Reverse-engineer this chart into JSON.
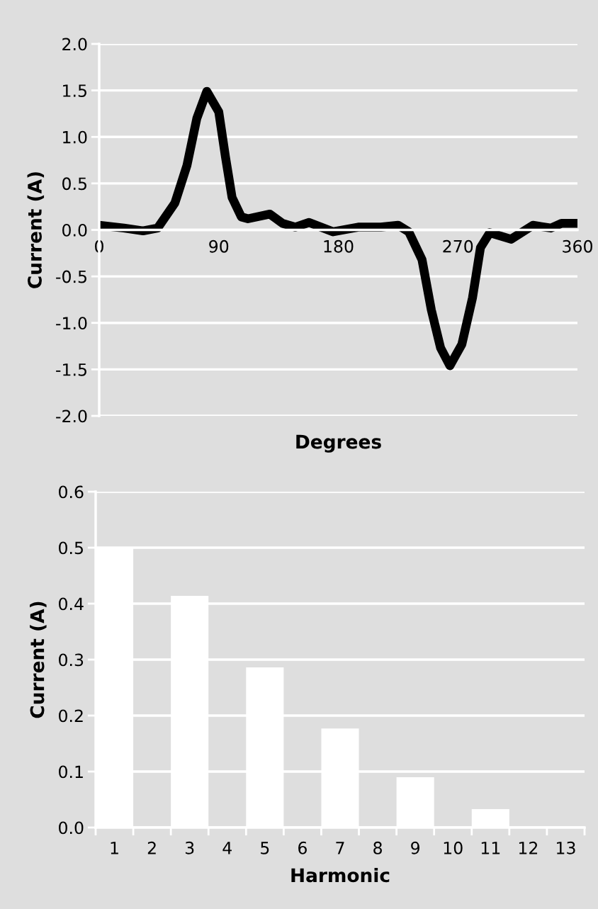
{
  "chart_data": [
    {
      "type": "line",
      "xlabel": "Degrees",
      "ylabel": "Current (A)",
      "xlim": [
        0,
        360
      ],
      "ylim": [
        -2.0,
        2.0
      ],
      "xticks": [
        0,
        90,
        180,
        270,
        360
      ],
      "yticks": [
        {
          "value": -2.0,
          "label": "-2.0"
        },
        {
          "value": -1.5,
          "label": "-1.5"
        },
        {
          "value": -1.0,
          "label": "-1.0"
        },
        {
          "value": -0.5,
          "label": "-0.5"
        },
        {
          "value": 0.0,
          "label": "0.0"
        },
        {
          "value": 0.5,
          "label": "0.5"
        },
        {
          "value": 1.0,
          "label": "1.0"
        },
        {
          "value": 1.5,
          "label": "1.5"
        },
        {
          "value": 2.0,
          "label": "2.0"
        }
      ],
      "grid": "y",
      "legend": false,
      "line_style": "solid",
      "series": [
        {
          "color": "#000000",
          "x": [
            0,
            18.6,
            33,
            44,
            57,
            66,
            73.5,
            81,
            90,
            95,
            100,
            107,
            112,
            128.5,
            138,
            147.5,
            158,
            167,
            176,
            195,
            212,
            225,
            233,
            243,
            250,
            257,
            264,
            273,
            281,
            287,
            294,
            310,
            326.5,
            340,
            348,
            360
          ],
          "values": [
            0.05,
            0.02,
            -0.01,
            0.02,
            0.29,
            0.69,
            1.2,
            1.49,
            1.27,
            0.79,
            0.35,
            0.14,
            0.12,
            0.17,
            0.07,
            0.03,
            0.08,
            0.03,
            -0.02,
            0.03,
            0.03,
            0.05,
            -0.02,
            -0.32,
            -0.86,
            -1.27,
            -1.46,
            -1.23,
            -0.73,
            -0.19,
            -0.03,
            -0.1,
            0.05,
            0.02,
            0.07,
            0.07
          ]
        }
      ]
    },
    {
      "type": "bar",
      "xlabel": "Harmonic",
      "ylabel": "Current (A)",
      "categories": [
        "1",
        "2",
        "3",
        "4",
        "5",
        "6",
        "7",
        "8",
        "9",
        "10",
        "11",
        "12",
        "13"
      ],
      "ylim": [
        0,
        0.6
      ],
      "yticks": [
        {
          "value": 0,
          "label": "0.0"
        },
        {
          "value": 0.1,
          "label": "0.1"
        },
        {
          "value": 0.2,
          "label": "0.2"
        },
        {
          "value": 0.3,
          "label": "0.3"
        },
        {
          "value": 0.4,
          "label": "0.4"
        },
        {
          "value": 0.5,
          "label": "0.5"
        },
        {
          "value": 0.6,
          "label": "0.6"
        }
      ],
      "grid": "y",
      "legend": false,
      "color": "#ffffff",
      "values": [
        0.5,
        0,
        0.414,
        0,
        0.286,
        0,
        0.177,
        0,
        0.09,
        0,
        0.033,
        0,
        0
      ]
    }
  ]
}
